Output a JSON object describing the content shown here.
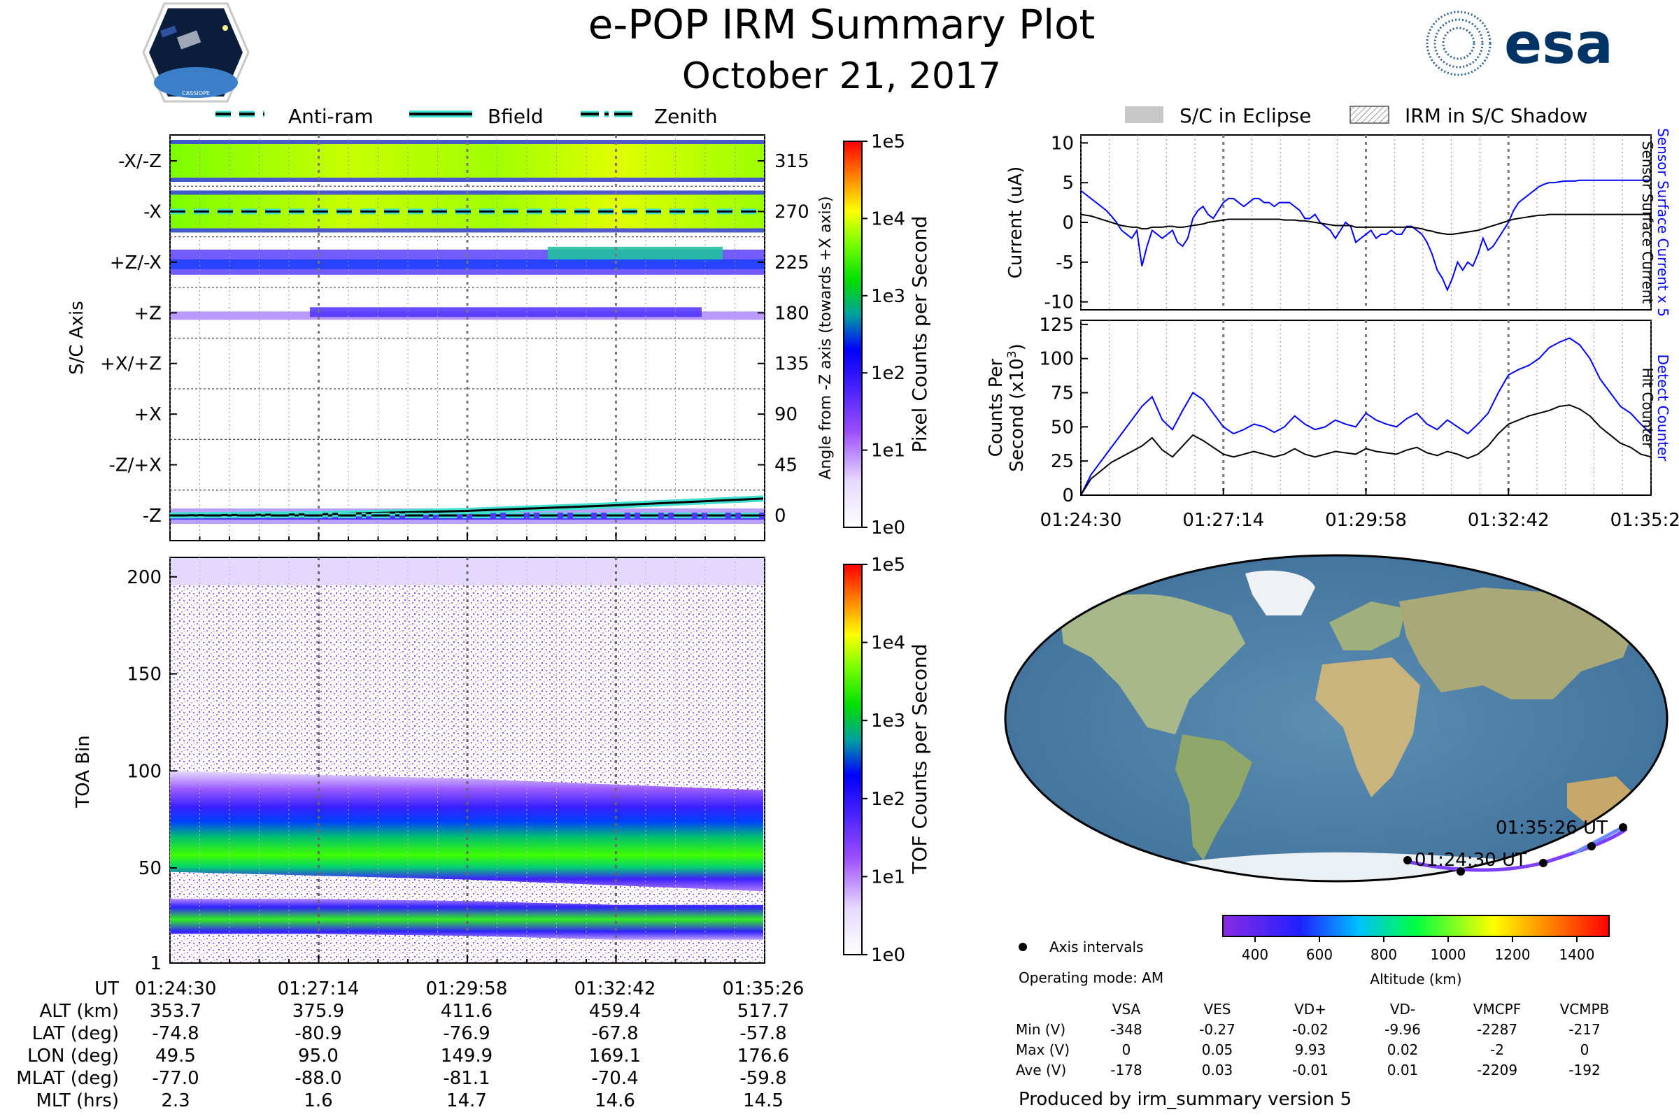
{
  "header": {
    "title": "e-POP IRM Summary Plot",
    "date": "October 21, 2017",
    "logo_left": "CASSIOPE",
    "logo_right": "esa"
  },
  "legend_top_left": [
    {
      "label": "Anti-ram",
      "style": "dashed"
    },
    {
      "label": "Bfield",
      "style": "solid"
    },
    {
      "label": "Zenith",
      "style": "dashdot"
    }
  ],
  "legend_top_right": [
    {
      "label": "S/C in Eclipse",
      "style": "gray"
    },
    {
      "label": "IRM in S/C Shadow",
      "style": "hatch"
    }
  ],
  "colors": {
    "trace_blue": "#0000ff",
    "trace_black": "#000000",
    "track_purple": "#7f3fff",
    "line_cyan": "#40e0d0"
  },
  "time_ticks": [
    "01:24:30",
    "01:27:14",
    "01:29:58",
    "01:32:42",
    "01:35:26"
  ],
  "chart_data": [
    {
      "type": "heatmap",
      "name": "pixel_counts",
      "ylabel": "S/C Axis",
      "y_tick_labels": [
        "-X/-Z",
        "-X",
        "+Z/-X",
        "+Z",
        "+X/+Z",
        "+X",
        "-Z/+X",
        "-Z"
      ],
      "right_ticks": [
        "315",
        "270",
        "225",
        "180",
        "135",
        "90",
        "45",
        "0"
      ],
      "right_label": "Angle from -Z axis (towards +X axis)",
      "colorbar_label": "Pixel Counts per Second",
      "colorbar_ticks": [
        "1e5",
        "1e4",
        "1e3",
        "1e2",
        "1e1",
        "1e0"
      ],
      "band_intensity": [
        0.72,
        0.74,
        0.28,
        0.12,
        0.0,
        0.0,
        0.0,
        0.08
      ],
      "anti_ram_angle": [
        270,
        270,
        270,
        270,
        270
      ],
      "zenith_angle": [
        0,
        0,
        0,
        0,
        0
      ],
      "bfield_angle": [
        0,
        1,
        4,
        9,
        15
      ]
    },
    {
      "type": "heatmap",
      "name": "tof_counts",
      "ylabel": "TOA Bin",
      "y_ticks": [
        1,
        50,
        100,
        150,
        200
      ],
      "ylim": [
        1,
        210
      ],
      "colorbar_label": "TOF Counts per Second",
      "colorbar_ticks": [
        "1e5",
        "1e4",
        "1e3",
        "1e2",
        "1e1",
        "1e0"
      ],
      "main_band_center": [
        62,
        60,
        58,
        55,
        52
      ],
      "low_band_center": [
        25,
        25,
        24,
        22,
        22
      ]
    },
    {
      "type": "line",
      "name": "current",
      "ylabel": "Current (uA)",
      "right_label_1": "Sensor Surface Current x 5",
      "right_label_2": "Sensor Surface Current",
      "yticks": [
        -10,
        -5,
        0,
        5,
        10
      ],
      "ylim": [
        -11,
        11
      ],
      "x": [
        0,
        0.5,
        1,
        1.5,
        2,
        2.5,
        3,
        3.5,
        4,
        4.5,
        5,
        5.5,
        6,
        6.5,
        7,
        7.5,
        8,
        8.5,
        9,
        9.5,
        10,
        10.5,
        11,
        11.5,
        12,
        12.5,
        13,
        13.5,
        14,
        14.5,
        15,
        15.5,
        16,
        16.5,
        17,
        17.5,
        18,
        18.5,
        19,
        19.5,
        20,
        20.5,
        21,
        21.5,
        22,
        22.5,
        23,
        23.5,
        24,
        24.5,
        25,
        25.5,
        26,
        26.5,
        27,
        27.5,
        28,
        28.5,
        29,
        29.5,
        30,
        30.5,
        31,
        31.5,
        32,
        32.5,
        33,
        33.5,
        34,
        34.5,
        35,
        35.5,
        36,
        36.5,
        37,
        37.5,
        38,
        38.5,
        39,
        39.5,
        40,
        40.5,
        41,
        41.5,
        42,
        42.5,
        43,
        43.5,
        44,
        44.5,
        45,
        45.5,
        46,
        46.5,
        47,
        47.5,
        48,
        48.5,
        49,
        49.5,
        50,
        50.5,
        51,
        51.5,
        52,
        52.5,
        53,
        53.5,
        54,
        54.5,
        55,
        55.5,
        56
      ],
      "series": [
        {
          "name": "Sensor Surface Current x 5",
          "color": "#0000ff",
          "values": [
            4,
            3.5,
            3,
            2.5,
            2,
            1.5,
            0.8,
            0,
            -1,
            -1.5,
            -2,
            -1,
            -5.5,
            -3,
            -1,
            -1.5,
            -2,
            -1.5,
            -1,
            -2.5,
            -3,
            -2,
            0.5,
            1.5,
            2,
            1,
            0.5,
            1.5,
            2.5,
            3,
            3,
            2.5,
            2,
            2.5,
            3,
            3,
            2.5,
            2.5,
            2,
            2.5,
            2.5,
            2.5,
            2,
            1.5,
            0.5,
            0.5,
            1,
            0,
            -0.5,
            -1,
            -2,
            -1,
            0,
            -0.5,
            -2.5,
            -2,
            -1.5,
            -1,
            -2,
            -1.5,
            -1.5,
            -1,
            -1.5,
            -1.5,
            -0.5,
            -0.5,
            -1,
            -1.5,
            -2.5,
            -4,
            -6,
            -7,
            -8.5,
            -7,
            -5,
            -6,
            -5,
            -5.5,
            -4,
            -2,
            -3.5,
            -3,
            -2,
            -1,
            0,
            1.5,
            2.5,
            3,
            3.5,
            4,
            4.5,
            4.8,
            5,
            5,
            5.1,
            5.2,
            5.2,
            5.2,
            5.3,
            5.3,
            5.3,
            5.3,
            5.3,
            5.3,
            5.3,
            5.3,
            5.3,
            5.3,
            5.3,
            5.3,
            5.3,
            5.3,
            5.3
          ]
        },
        {
          "name": "Sensor Surface Current",
          "color": "#000000",
          "values": [
            1,
            0.9,
            0.8,
            0.6,
            0.4,
            0.2,
            0,
            -0.2,
            -0.4,
            -0.5,
            -0.6,
            -0.6,
            -0.8,
            -0.8,
            -0.6,
            -0.6,
            -0.6,
            -0.5,
            -0.5,
            -0.6,
            -0.6,
            -0.5,
            -0.4,
            -0.3,
            -0.2,
            0,
            0.1,
            0.2,
            0.3,
            0.4,
            0.4,
            0.4,
            0.4,
            0.4,
            0.4,
            0.4,
            0.4,
            0.4,
            0.4,
            0.4,
            0.3,
            0.3,
            0.3,
            0.2,
            0.2,
            0.1,
            0,
            -0.1,
            -0.2,
            -0.3,
            -0.4,
            -0.4,
            -0.4,
            -0.4,
            -0.6,
            -0.6,
            -0.6,
            -0.6,
            -0.6,
            -0.6,
            -0.6,
            -0.6,
            -0.6,
            -0.6,
            -0.6,
            -0.6,
            -0.7,
            -0.8,
            -1,
            -1.1,
            -1.3,
            -1.4,
            -1.5,
            -1.5,
            -1.4,
            -1.3,
            -1.2,
            -1.1,
            -1,
            -0.8,
            -0.6,
            -0.4,
            -0.2,
            0,
            0.2,
            0.4,
            0.5,
            0.6,
            0.7,
            0.8,
            0.9,
            0.9,
            1,
            1,
            1,
            1,
            1,
            1,
            1,
            1,
            1,
            1,
            1,
            1,
            1,
            1,
            1,
            1,
            1,
            1,
            1,
            1,
            1
          ]
        }
      ]
    },
    {
      "type": "line",
      "name": "counts",
      "ylabel": "Counts Per Second (x10³)",
      "ylabel_line1": "Counts Per",
      "ylabel_line2": "Second (x10",
      "ylabel_sup": "3",
      "ylabel_close": ")",
      "right_label_1": "Detect Counter",
      "right_label_2": "Hit Counter",
      "yticks": [
        0,
        25,
        50,
        75,
        100,
        125
      ],
      "ylim": [
        0,
        125
      ],
      "x": [
        0,
        1,
        2,
        3,
        4,
        5,
        6,
        7,
        8,
        9,
        10,
        11,
        12,
        13,
        14,
        15,
        16,
        17,
        18,
        19,
        20,
        21,
        22,
        23,
        24,
        25,
        26,
        27,
        28,
        29,
        30,
        31,
        32,
        33,
        34,
        35,
        36,
        37,
        38,
        39,
        40,
        41,
        42,
        43,
        44,
        45,
        46,
        47,
        48,
        49,
        50,
        51,
        52,
        53,
        54,
        55,
        56
      ],
      "series": [
        {
          "name": "Detect Counter",
          "color": "#0000ff",
          "values": [
            0,
            15,
            25,
            35,
            45,
            55,
            65,
            72,
            55,
            48,
            62,
            75,
            70,
            60,
            50,
            45,
            48,
            52,
            50,
            46,
            50,
            58,
            52,
            48,
            50,
            55,
            52,
            50,
            60,
            55,
            52,
            50,
            56,
            60,
            52,
            48,
            55,
            50,
            45,
            52,
            60,
            75,
            88,
            92,
            95,
            100,
            108,
            112,
            115,
            110,
            100,
            85,
            75,
            65,
            60,
            52,
            45
          ]
        },
        {
          "name": "Hit Counter",
          "color": "#000000",
          "values": [
            0,
            12,
            18,
            24,
            28,
            32,
            36,
            42,
            33,
            28,
            36,
            44,
            40,
            35,
            30,
            28,
            30,
            32,
            30,
            28,
            30,
            34,
            30,
            28,
            30,
            32,
            31,
            30,
            34,
            32,
            31,
            30,
            33,
            35,
            31,
            29,
            32,
            30,
            27,
            30,
            36,
            45,
            52,
            55,
            58,
            60,
            62,
            65,
            66,
            63,
            58,
            50,
            44,
            38,
            35,
            30,
            28
          ]
        }
      ]
    }
  ],
  "map": {
    "label_start": "01:24:30 UT",
    "label_end": "01:35:26 UT",
    "colorbar_ticks": [
      "400",
      "600",
      "800",
      "1000",
      "1200",
      "1400"
    ],
    "colorbar_label": "Altitude (km)",
    "colorbar_min": 300,
    "colorbar_max": 1500,
    "legend_label": "Axis intervals",
    "operating_mode": "Operating mode: AM"
  },
  "voltage_table": {
    "columns": [
      "VSA",
      "VES",
      "VD+",
      "VD-",
      "VMCPF",
      "VCMPB"
    ],
    "rows": [
      {
        "label": "Min (V)",
        "values": [
          "-348",
          "-0.27",
          "-0.02",
          "-9.96",
          "-2287",
          "-217"
        ]
      },
      {
        "label": "Max (V)",
        "values": [
          "0",
          "0.05",
          "9.93",
          "0.02",
          "-2",
          "0"
        ]
      },
      {
        "label": "Ave (V)",
        "values": [
          "-178",
          "0.03",
          "-0.01",
          "0.01",
          "-2209",
          "-192"
        ]
      }
    ]
  },
  "ephemeris": {
    "rows": [
      {
        "label": "UT",
        "values": [
          "01:24:30",
          "01:27:14",
          "01:29:58",
          "01:32:42",
          "01:35:26"
        ]
      },
      {
        "label": "ALT (km)",
        "values": [
          "353.7",
          "375.9",
          "411.6",
          "459.4",
          "517.7"
        ]
      },
      {
        "label": "LAT (deg)",
        "values": [
          "-74.8",
          "-80.9",
          "-76.9",
          "-67.8",
          "-57.8"
        ]
      },
      {
        "label": "LON (deg)",
        "values": [
          "49.5",
          "95.0",
          "149.9",
          "169.1",
          "176.6"
        ]
      },
      {
        "label": "MLAT (deg)",
        "values": [
          "-77.0",
          "-88.0",
          "-81.1",
          "-70.4",
          "-59.8"
        ]
      },
      {
        "label": "MLT (hrs)",
        "values": [
          "2.3",
          "1.6",
          "14.7",
          "14.6",
          "14.5"
        ]
      }
    ]
  },
  "footer": "Produced by irm_summary version 5"
}
